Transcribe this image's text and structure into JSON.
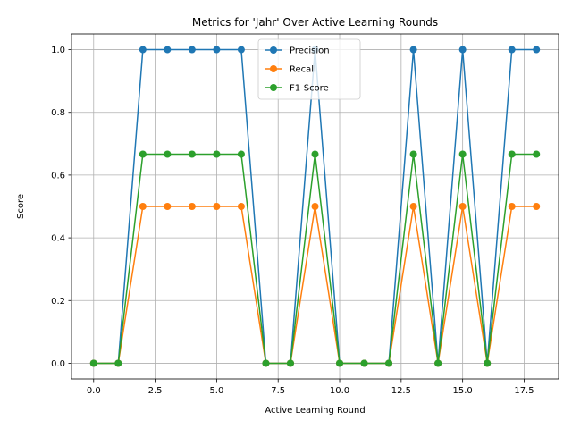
{
  "chart_data": {
    "type": "line",
    "title": "Metrics for 'Jahr' Over Active Learning Rounds",
    "xlabel": "Active Learning Round",
    "ylabel": "Score",
    "xlim": [
      -0.9,
      18.9
    ],
    "ylim": [
      -0.05,
      1.05
    ],
    "x_ticks": [
      0.0,
      2.5,
      5.0,
      7.5,
      10.0,
      12.5,
      15.0,
      17.5
    ],
    "x_tick_labels": [
      "0.0",
      "2.5",
      "5.0",
      "7.5",
      "10.0",
      "12.5",
      "15.0",
      "17.5"
    ],
    "y_ticks": [
      0.0,
      0.2,
      0.4,
      0.6,
      0.8,
      1.0
    ],
    "y_tick_labels": [
      "0.0",
      "0.2",
      "0.4",
      "0.6",
      "0.8",
      "1.0"
    ],
    "grid": true,
    "legend_position": "top-center",
    "x": [
      0,
      1,
      2,
      3,
      4,
      5,
      6,
      7,
      8,
      9,
      10,
      11,
      12,
      13,
      14,
      15,
      16,
      17,
      18
    ],
    "series": [
      {
        "name": "Precision",
        "color": "#1f77b4",
        "values": [
          0,
          0,
          1,
          1,
          1,
          1,
          1,
          0,
          0,
          1,
          0,
          0,
          0,
          1,
          0,
          1,
          0,
          1,
          1
        ]
      },
      {
        "name": "Recall",
        "color": "#ff7f0e",
        "values": [
          0,
          0,
          0.5,
          0.5,
          0.5,
          0.5,
          0.5,
          0,
          0,
          0.5,
          0,
          0,
          0,
          0.5,
          0,
          0.5,
          0,
          0.5,
          0.5
        ]
      },
      {
        "name": "F1-Score",
        "color": "#2ca02c",
        "values": [
          0,
          0,
          0.6667,
          0.6667,
          0.6667,
          0.6667,
          0.6667,
          0,
          0,
          0.6667,
          0,
          0,
          0,
          0.6667,
          0,
          0.6667,
          0,
          0.6667,
          0.6667
        ]
      }
    ]
  }
}
